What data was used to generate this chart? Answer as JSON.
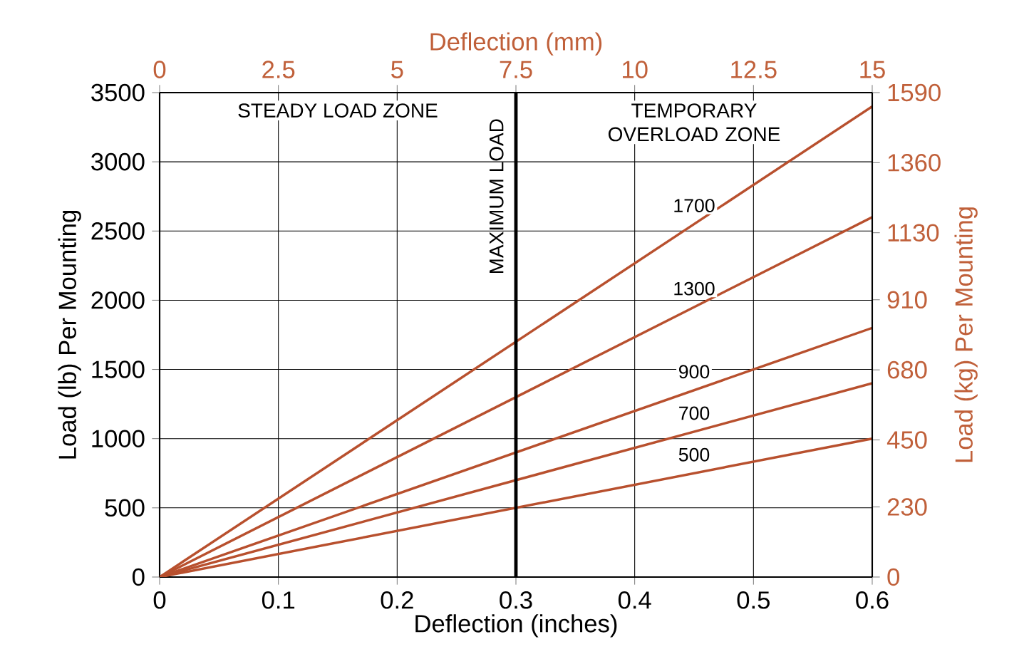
{
  "chart_data": {
    "type": "line",
    "xlabel": "Deflection (inches)",
    "ylabel": "Load (lb) Per Mounting",
    "x2label": "Deflection (mm)",
    "y2label": "Load (kg) Per Mounting",
    "xlim": [
      0,
      0.6
    ],
    "xticks": [
      0,
      0.1,
      0.2,
      0.3,
      0.4,
      0.5,
      0.6
    ],
    "ylim": [
      0,
      3500
    ],
    "yticks": [
      0,
      500,
      1000,
      1500,
      2000,
      2500,
      3000,
      3500
    ],
    "x2lim": [
      0,
      15
    ],
    "x2ticks": [
      0,
      2.5,
      5,
      7.5,
      10,
      12.5,
      15
    ],
    "y2lim": [
      0,
      1590
    ],
    "y2ticks": [
      0,
      230,
      450,
      680,
      910,
      1130,
      1360,
      1590
    ],
    "grid": true,
    "marker": "none",
    "line_style": "solid",
    "x": [
      0,
      0.6
    ],
    "series": [
      {
        "name": "500",
        "color": "#b8502e",
        "values": [
          0,
          1000
        ]
      },
      {
        "name": "700",
        "color": "#b8502e",
        "values": [
          0,
          1400
        ]
      },
      {
        "name": "900",
        "color": "#b8502e",
        "values": [
          0,
          1800
        ]
      },
      {
        "name": "1300",
        "color": "#b8502e",
        "values": [
          0,
          2600
        ]
      },
      {
        "name": "1700",
        "color": "#b8502e",
        "values": [
          0,
          3400
        ]
      }
    ],
    "ref_lines": [
      {
        "axis": "x",
        "value": 0.3,
        "label": "MAXIMUM LOAD",
        "color": "#000000"
      }
    ],
    "annotations": [
      "STEADY LOAD ZONE",
      "TEMPORARY OVERLOAD ZONE"
    ]
  }
}
